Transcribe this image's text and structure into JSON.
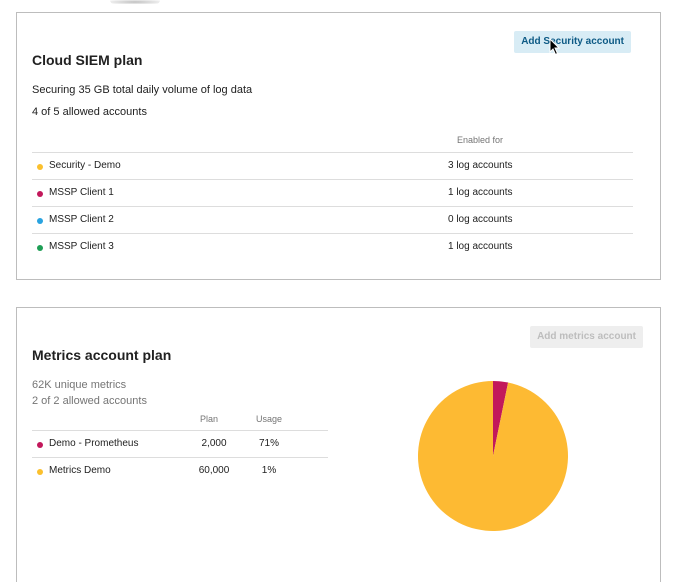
{
  "siem": {
    "title": "Cloud SIEM plan",
    "button_label": "Add Security account",
    "volume_text": "Securing 35 GB total daily volume of log data",
    "accounts_text": "4 of 5 allowed accounts",
    "enabled_header": "Enabled for",
    "rows": [
      {
        "name": "Security - Demo",
        "enabled": "3 log accounts",
        "color": "#fbc02d"
      },
      {
        "name": "MSSP Client 1",
        "enabled": "1 log accounts",
        "color": "#c2185b"
      },
      {
        "name": "MSSP Client 2",
        "enabled": "0 log accounts",
        "color": "#29a3e0"
      },
      {
        "name": "MSSP Client 3",
        "enabled": "1 log accounts",
        "color": "#1e9e55"
      }
    ]
  },
  "metrics": {
    "title": "Metrics account plan",
    "button_label": "Add metrics account",
    "unique_text": "62K unique metrics",
    "accounts_text": "2 of 2 allowed accounts",
    "plan_header": "Plan",
    "usage_header": "Usage",
    "rows": [
      {
        "name": "Demo - Prometheus",
        "plan": "2,000",
        "usage": "71%",
        "color": "#c2185b"
      },
      {
        "name": "Metrics Demo",
        "plan": "60,000",
        "usage": "1%",
        "color": "#fbc02d"
      }
    ]
  },
  "chart_data": {
    "type": "pie",
    "categories": [
      "Demo - Prometheus",
      "Metrics Demo"
    ],
    "values": [
      2000,
      60000
    ],
    "colors": [
      "#c2185b",
      "#fdba33"
    ]
  }
}
